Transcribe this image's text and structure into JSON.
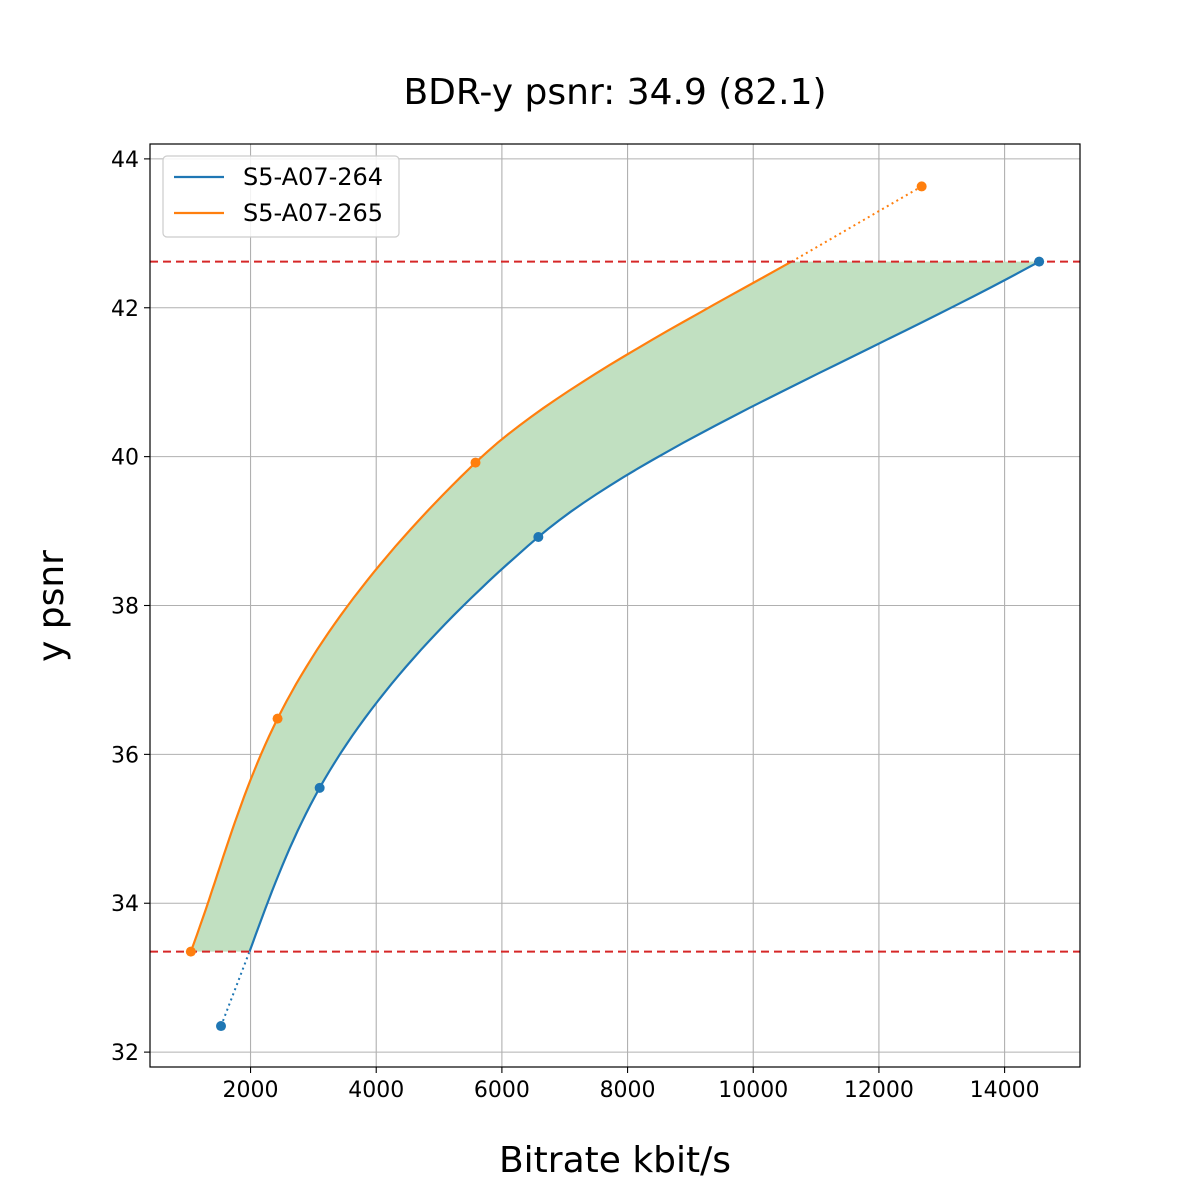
{
  "chart_data": {
    "type": "line",
    "title": "BDR-y psnr: 34.9 (82.1)",
    "xlabel": "Bitrate kbit/s",
    "ylabel": "y psnr",
    "xlim": [
      400,
      15200
    ],
    "ylim": [
      31.8,
      44.2
    ],
    "xticks": [
      2000,
      4000,
      6000,
      8000,
      10000,
      12000,
      14000
    ],
    "yticks": [
      32,
      34,
      36,
      38,
      40,
      42,
      44
    ],
    "grid": true,
    "legend": {
      "position": "top-left"
    },
    "colors": {
      "s264": "#1f77b4",
      "s265": "#ff7f0e",
      "fill": "#c1e0c1",
      "reference": "#d62728",
      "grid": "#b0b0b0"
    },
    "series": [
      {
        "name": "S5-A07-264",
        "color": "#1f77b4",
        "x": [
          1530,
          3100,
          6580,
          14550
        ],
        "y": [
          32.35,
          35.55,
          38.92,
          42.62
        ]
      },
      {
        "name": "S5-A07-265",
        "color": "#ff7f0e",
        "x": [
          1050,
          2430,
          5580,
          12680
        ],
        "y": [
          33.35,
          36.48,
          39.92,
          43.63
        ]
      }
    ],
    "reference_lines": [
      {
        "axis": "y",
        "value": 42.62,
        "style": "dashed"
      },
      {
        "axis": "y",
        "value": 33.35,
        "style": "dashed"
      }
    ],
    "filled_region": {
      "between": [
        "S5-A07-265",
        "S5-A07-264"
      ],
      "ylim": [
        33.35,
        42.62
      ]
    }
  }
}
